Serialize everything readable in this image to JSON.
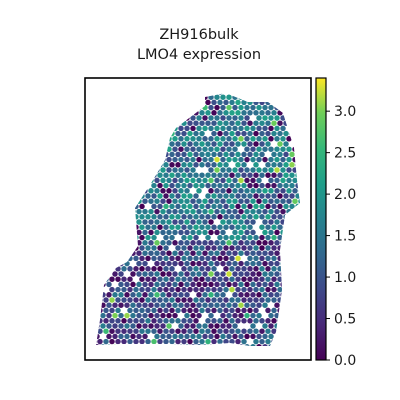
{
  "chart_data": {
    "type": "heatmap",
    "title": "ZH916bulk",
    "subtitle": "LMO4 expression",
    "xlabel": "",
    "ylabel": "",
    "colorbar": {
      "colormap": "viridis",
      "range": [
        0,
        3.4
      ],
      "ticks": [
        0.0,
        0.5,
        1.0,
        1.5,
        2.0,
        2.5,
        3.0
      ],
      "tick_labels": [
        "0.0",
        "0.5",
        "1.0",
        "1.5",
        "2.0",
        "2.5",
        "3.0"
      ],
      "position": "right"
    },
    "spots": {
      "shape": "hexagonal spatial spots",
      "typical_value": 0.9,
      "max_value": 3.3
    },
    "colors": {
      "low": "#440154",
      "mid": "#21918c",
      "high": "#fde725",
      "frame": "#000000"
    }
  }
}
